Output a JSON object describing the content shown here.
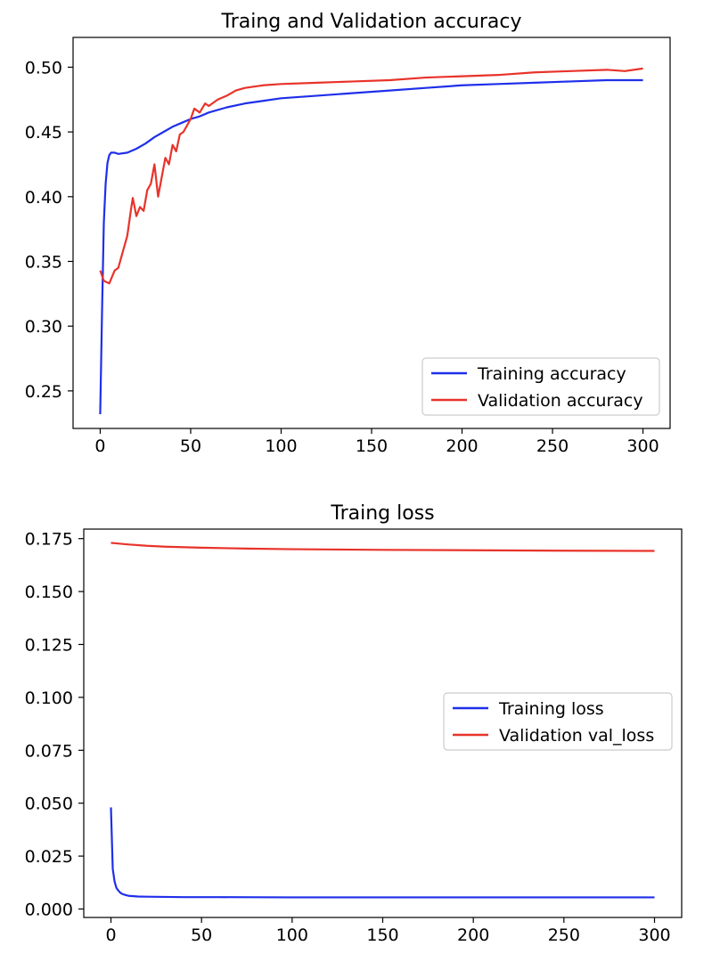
{
  "colors": {
    "training": "#1f2fea",
    "validation": "#e8332a"
  },
  "chart_data": [
    {
      "type": "line",
      "title": "Traing and Validation accuracy",
      "xlabel": "",
      "ylabel": "",
      "xlim": [
        -15,
        315
      ],
      "ylim": [
        0.221,
        0.523
      ],
      "xticks": [
        0,
        50,
        100,
        150,
        200,
        250,
        300
      ],
      "yticks": [
        0.25,
        0.3,
        0.35,
        0.4,
        0.45,
        0.5
      ],
      "ytick_labels": [
        "0.25",
        "0.30",
        "0.35",
        "0.40",
        "0.45",
        "0.50"
      ],
      "grid": false,
      "legend_position": "lower-right",
      "series": [
        {
          "name": "Training accuracy",
          "color": "training",
          "x": [
            0,
            1,
            2,
            3,
            4,
            5,
            6,
            8,
            10,
            15,
            20,
            25,
            30,
            35,
            40,
            45,
            50,
            55,
            60,
            70,
            80,
            90,
            100,
            120,
            140,
            160,
            180,
            200,
            220,
            240,
            260,
            280,
            300
          ],
          "y": [
            0.232,
            0.31,
            0.38,
            0.41,
            0.426,
            0.432,
            0.434,
            0.434,
            0.433,
            0.434,
            0.437,
            0.441,
            0.446,
            0.45,
            0.454,
            0.457,
            0.46,
            0.462,
            0.465,
            0.469,
            0.472,
            0.474,
            0.476,
            0.478,
            0.48,
            0.482,
            0.484,
            0.486,
            0.487,
            0.488,
            0.489,
            0.49,
            0.49
          ]
        },
        {
          "name": "Validation accuracy",
          "color": "validation",
          "x": [
            0,
            2,
            5,
            8,
            10,
            12,
            15,
            17,
            18,
            20,
            22,
            24,
            26,
            28,
            30,
            32,
            34,
            36,
            38,
            40,
            42,
            44,
            46,
            48,
            50,
            52,
            55,
            58,
            60,
            65,
            70,
            75,
            80,
            90,
            100,
            120,
            140,
            160,
            180,
            200,
            220,
            240,
            260,
            280,
            290,
            300
          ],
          "y": [
            0.343,
            0.335,
            0.333,
            0.343,
            0.345,
            0.355,
            0.37,
            0.39,
            0.399,
            0.385,
            0.392,
            0.389,
            0.405,
            0.41,
            0.425,
            0.4,
            0.415,
            0.43,
            0.425,
            0.44,
            0.435,
            0.448,
            0.45,
            0.455,
            0.46,
            0.468,
            0.465,
            0.472,
            0.47,
            0.475,
            0.478,
            0.482,
            0.484,
            0.486,
            0.487,
            0.488,
            0.489,
            0.49,
            0.492,
            0.493,
            0.494,
            0.496,
            0.497,
            0.498,
            0.497,
            0.499
          ]
        }
      ]
    },
    {
      "type": "line",
      "title": "Traing loss",
      "xlabel": "",
      "ylabel": "",
      "xlim": [
        -15,
        315
      ],
      "ylim": [
        -0.004,
        0.1795
      ],
      "xticks": [
        0,
        50,
        100,
        150,
        200,
        250,
        300
      ],
      "yticks": [
        0.0,
        0.025,
        0.05,
        0.075,
        0.1,
        0.125,
        0.15,
        0.175
      ],
      "ytick_labels": [
        "0.000",
        "0.025",
        "0.050",
        "0.075",
        "0.100",
        "0.125",
        "0.150",
        "0.175"
      ],
      "grid": false,
      "legend_position": "center-right",
      "series": [
        {
          "name": "Training loss",
          "color": "training",
          "x": [
            0,
            1,
            2,
            3,
            4,
            5,
            6,
            8,
            10,
            15,
            20,
            30,
            40,
            60,
            100,
            150,
            200,
            250,
            300
          ],
          "y": [
            0.048,
            0.019,
            0.013,
            0.01,
            0.0088,
            0.0078,
            0.0072,
            0.0066,
            0.0062,
            0.0059,
            0.0058,
            0.0057,
            0.0056,
            0.0056,
            0.0055,
            0.0055,
            0.0055,
            0.0055,
            0.0055
          ]
        },
        {
          "name": "Validation val_loss",
          "color": "validation",
          "x": [
            0,
            10,
            20,
            30,
            50,
            75,
            100,
            150,
            200,
            250,
            300
          ],
          "y": [
            0.173,
            0.1722,
            0.1716,
            0.1712,
            0.1707,
            0.1703,
            0.17,
            0.1697,
            0.1695,
            0.1693,
            0.1692
          ]
        }
      ]
    }
  ]
}
